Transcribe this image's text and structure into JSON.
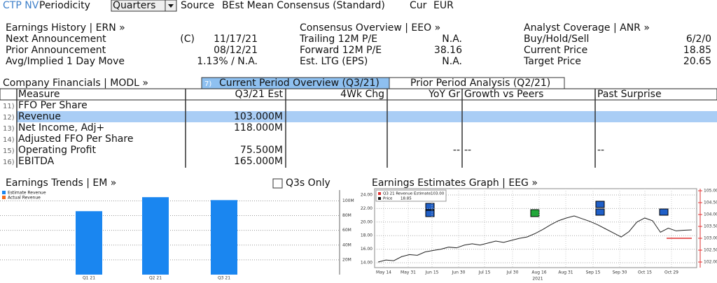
{
  "toolbar": {
    "ticker": "CTP NV",
    "periodicity_label": "Periodicity",
    "periodicity": "Quarters",
    "source_label": "Source",
    "source": "BEst Mean Consensus (Standard)",
    "currency_label": "Cur",
    "currency": "EUR"
  },
  "earnings_history": {
    "title": "Earnings History | ERN »",
    "rows": [
      {
        "label": "Next Announcement",
        "flag": "(C)",
        "value": "11/17/21"
      },
      {
        "label": "Prior Announcement",
        "value": "08/12/21"
      },
      {
        "label": "Avg/Implied 1 Day Move",
        "value": "1.13% / N.A."
      }
    ]
  },
  "consensus": {
    "title": "Consensus Overview | EEO »",
    "rows": [
      {
        "label": "Trailing 12M P/E",
        "value": "N.A."
      },
      {
        "label": "Forward 12M P/E",
        "value": "38.16"
      },
      {
        "label": "Est. LTG (EPS)",
        "value": "N.A."
      }
    ]
  },
  "analyst": {
    "title": "Analyst Coverage | ANR »",
    "rows": [
      {
        "label": "Buy/Hold/Sell",
        "value": "6/2/0"
      },
      {
        "label": "Current Price",
        "value": "18.85"
      },
      {
        "label": "Target Price",
        "value": "20.65"
      }
    ]
  },
  "financials": {
    "title": "Company Financials | MODL »",
    "tabs": [
      {
        "number": "7)",
        "label": "Current Period Overview (Q3/21)"
      },
      {
        "label": "Prior Period Analysis (Q2/21)"
      }
    ],
    "columns": [
      "Measure",
      "Q3/21 Est",
      "4Wk Chg",
      "YoY Gr",
      "Growth vs Peers",
      "Past Surprise"
    ],
    "rows": [
      {
        "number": "11)",
        "measure": "FFO Per Share"
      },
      {
        "number": "12)",
        "measure": "Revenue",
        "q3_est": "103.000M"
      },
      {
        "number": "13)",
        "measure": "Net Income, Adj+",
        "q3_est": "118.000M"
      },
      {
        "number": "14)",
        "measure": "Adjusted FFO Per Share"
      },
      {
        "number": "15)",
        "measure": "Operating Profit",
        "q3_est": "75.500M",
        "yoy_gr": "--",
        "growth_vs_peers": "--",
        "past_surprise": "--"
      },
      {
        "number": "16)",
        "measure": "EBITDA",
        "q3_est": "165.000M"
      }
    ]
  },
  "earnings_trends": {
    "title": "Earnings Trends | EM »",
    "checkbox_label": "Q3s Only",
    "legend": [
      {
        "name": "Estimate Revenue",
        "color": "#1a86f0"
      },
      {
        "name": "Actual Revenue",
        "color": "#f26a1b"
      }
    ],
    "categories": [
      "Q1 21",
      "Q2 21",
      "Q3 21"
    ],
    "values": [
      86,
      105,
      101
    ],
    "ylim": [
      0,
      108
    ],
    "yticks": [
      {
        "value": 20,
        "label": "20M"
      },
      {
        "value": 40,
        "label": "40M"
      },
      {
        "value": 60,
        "label": "60M"
      },
      {
        "value": 80,
        "label": "80M"
      },
      {
        "value": 100,
        "label": "100M"
      }
    ]
  },
  "estimates_graph": {
    "title": "Earnings Estimates Graph | EEG »",
    "legend_estimate": "Q3 21 Revenue Estimate",
    "revenue_estimate": 103,
    "revenue_estimate_label": "103.00",
    "legend_price": "Price",
    "current_price": 18.85,
    "xticks": [
      "May 14",
      "May 31",
      "Jun 15",
      "Jun 30",
      "Jul 15",
      "Jul 30",
      "Aug 16",
      "Aug 31",
      "Sep 15",
      "Sep 30",
      "Oct 15",
      "Oct 29"
    ],
    "year": "2021",
    "ylim": [
      14,
      24
    ],
    "yticks": [
      {
        "value": 14,
        "label": "14.00"
      },
      {
        "value": 16,
        "label": "16.00"
      },
      {
        "value": 18,
        "label": "18.00"
      },
      {
        "value": 20,
        "label": "20.00"
      },
      {
        "value": 22,
        "label": "22.00"
      },
      {
        "value": 24,
        "label": "24.00"
      }
    ],
    "y2lim": [
      102,
      105
    ],
    "y2ticks": [
      {
        "value": 102,
        "label": "102.00"
      },
      {
        "value": 102.5,
        "label": "102.50"
      },
      {
        "value": 103,
        "label": "103.00"
      },
      {
        "value": 103.5,
        "label": "103.50"
      },
      {
        "value": 104,
        "label": "104.00"
      },
      {
        "value": 104.5,
        "label": "104.50"
      },
      {
        "value": 105,
        "label": "105.00"
      }
    ],
    "price": [
      14.1,
      14.4,
      14.3,
      14.9,
      15.2,
      15.1,
      15.6,
      15.8,
      16.0,
      16.3,
      16.2,
      16.6,
      16.8,
      16.6,
      16.9,
      17.2,
      17.0,
      17.3,
      17.6,
      17.8,
      18.3,
      18.9,
      19.6,
      20.2,
      20.6,
      20.9,
      20.5,
      20.1,
      19.6,
      19.0,
      18.4,
      17.8,
      18.6,
      20.0,
      20.6,
      20.2,
      18.5,
      19.1,
      18.7,
      18.8,
      18.85
    ]
  }
}
